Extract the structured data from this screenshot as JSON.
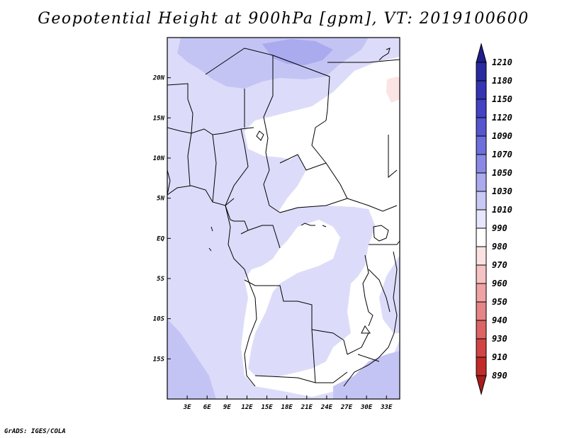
{
  "title": "Geopotential Height at 900hPa [gpm], VT: 2019100600",
  "credit": "GrADS: IGES/COLA",
  "map": {
    "lat_labels": [
      "20N",
      "15N",
      "10N",
      "5N",
      "EQ",
      "5S",
      "10S",
      "15S"
    ],
    "lat_values": [
      20,
      15,
      10,
      5,
      0,
      -5,
      -10,
      -15
    ],
    "lon_labels": [
      "3E",
      "6E",
      "9E",
      "12E",
      "15E",
      "18E",
      "21E",
      "24E",
      "27E",
      "30E",
      "33E"
    ],
    "lon_values": [
      3,
      6,
      9,
      12,
      15,
      18,
      21,
      24,
      27,
      30,
      33
    ],
    "lon_range": [
      0,
      35
    ],
    "lat_range": [
      -20,
      25
    ],
    "shading_colors": {
      "c1010_1030": "#dcdcfa",
      "c1030_1050": "#c4c4f4",
      "c1050_1070": "#aaaaef",
      "c990_1010": "#ffffff",
      "c980_990": "#fbe4e4"
    }
  },
  "colorbar": {
    "levels": [
      "1210",
      "1180",
      "1150",
      "1120",
      "1090",
      "1070",
      "1050",
      "1030",
      "1010",
      "990",
      "980",
      "970",
      "960",
      "950",
      "940",
      "930",
      "910",
      "890"
    ],
    "colors": [
      "#1e1e8c",
      "#2a2aa0",
      "#3434b4",
      "#4343c4",
      "#5656d0",
      "#6e6edc",
      "#8a8ae6",
      "#aaaaee",
      "#c9c9f6",
      "#e6e6fc",
      "#ffffff",
      "#fbe2e2",
      "#f5c3c3",
      "#efa3a3",
      "#e68585",
      "#dc6464",
      "#d24444",
      "#c22a2a",
      "#a81c1c"
    ]
  }
}
